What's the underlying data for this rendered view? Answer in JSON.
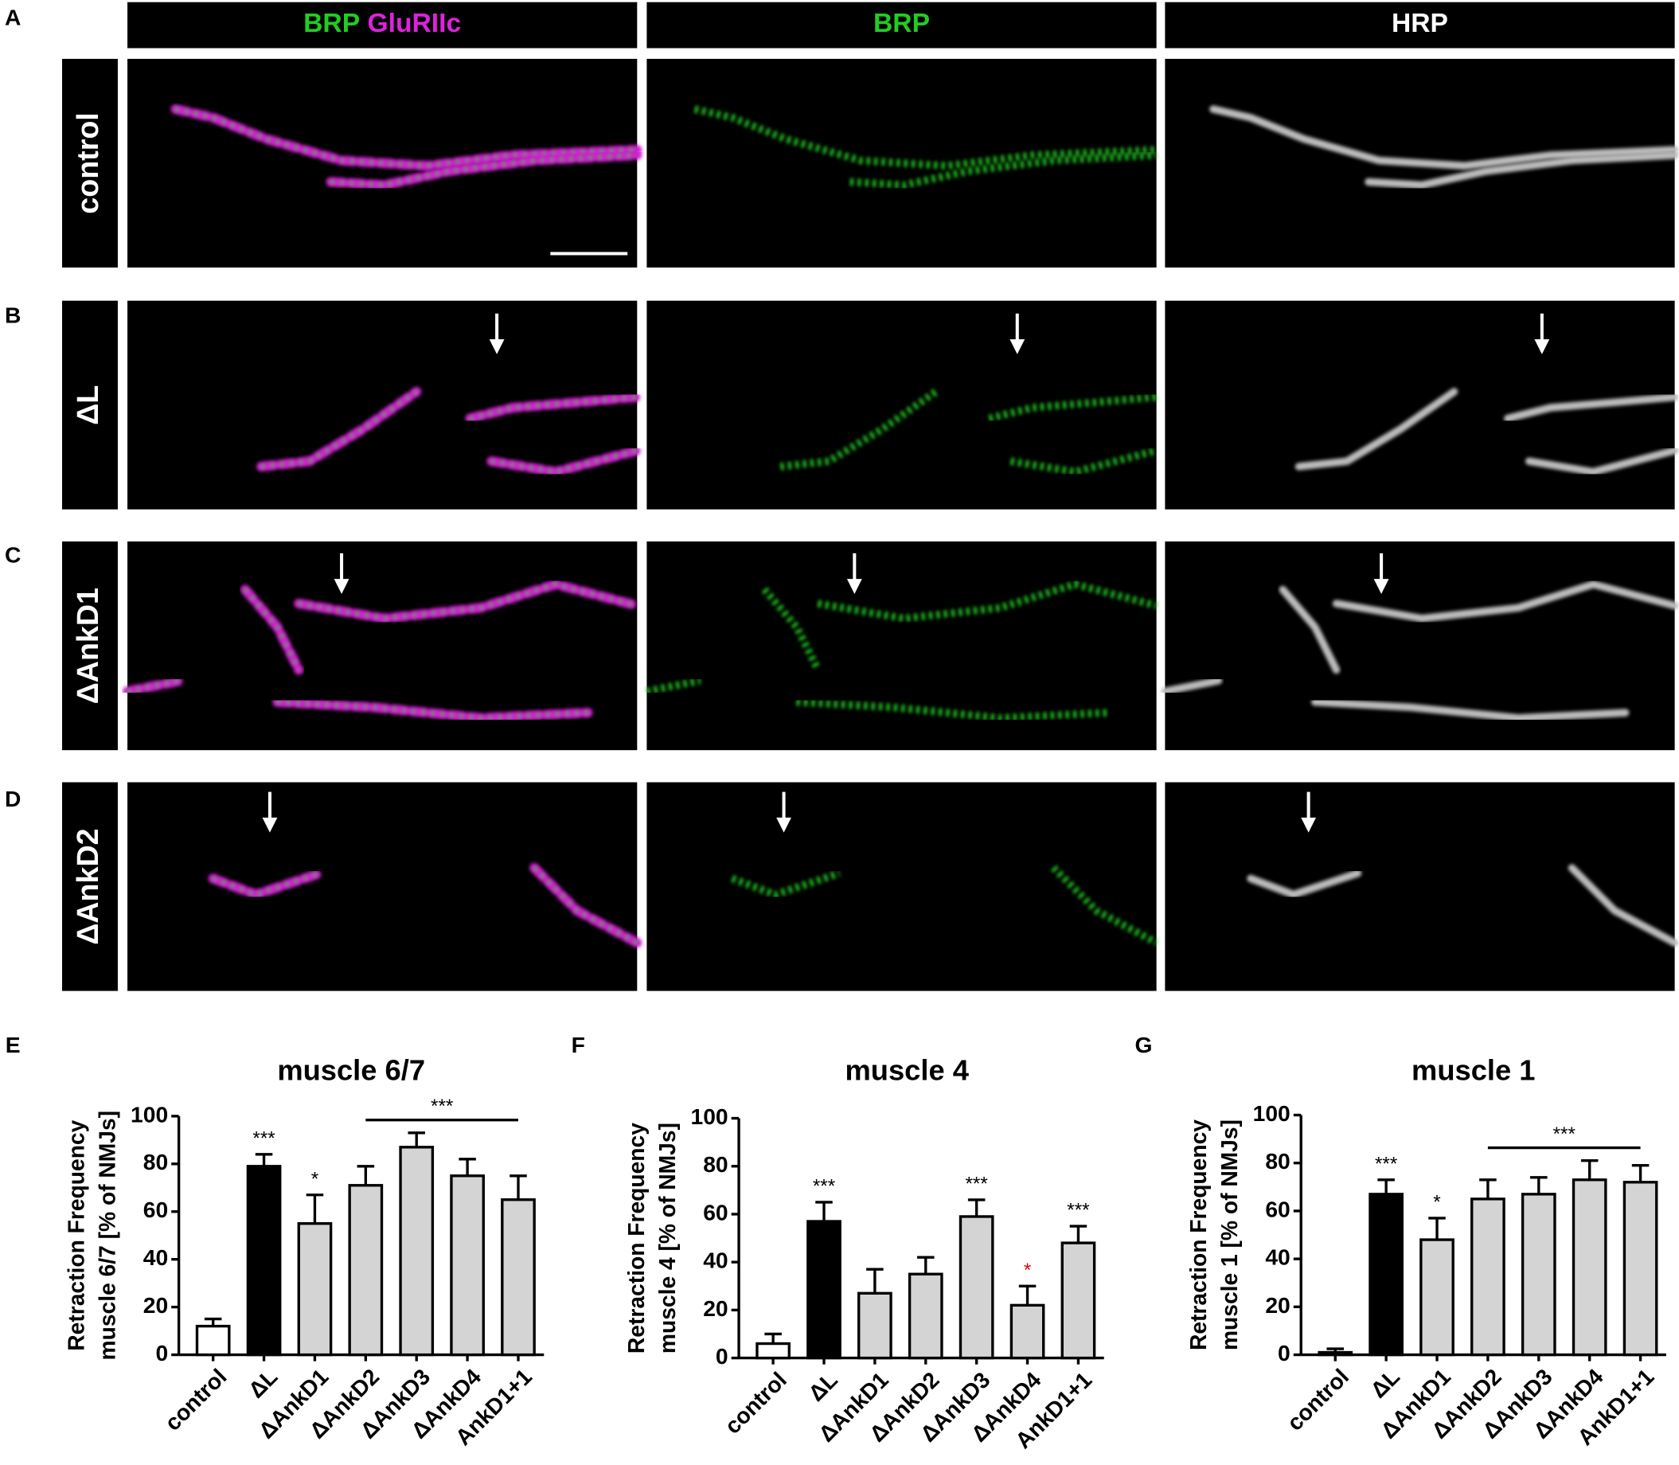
{
  "panel_labels": [
    "A",
    "B",
    "C",
    "D",
    "E",
    "F",
    "G"
  ],
  "column_headers": [
    [
      "BRP",
      "GluRIIc"
    ],
    [
      "BRP"
    ],
    [
      "HRP"
    ]
  ],
  "row_labels": [
    "control",
    "ΔL",
    "ΔAnkD1",
    "ΔAnkD2"
  ],
  "chart_data": [
    {
      "type": "bar",
      "title": "muscle 6/7",
      "ylabel": [
        "Retraction Frequency",
        "muscle 6/7 [% of NMJs]"
      ],
      "categories": [
        "control",
        "ΔL",
        "ΔAnkD1",
        "ΔAnkD2",
        "ΔAnkD3",
        "ΔAnkD4",
        "AnkD1+1"
      ],
      "values": [
        12,
        79,
        55,
        71,
        87,
        75,
        65
      ],
      "errors": [
        3,
        5,
        12,
        8,
        6,
        7,
        10
      ],
      "colors": [
        "#ffffff",
        "#000000",
        "#d4d4d4",
        "#d4d4d4",
        "#d4d4d4",
        "#d4d4d4",
        "#d4d4d4"
      ],
      "annotations": [
        null,
        {
          "text": "***",
          "color": "#000000"
        },
        {
          "text": "*",
          "color": "#000000"
        },
        null,
        null,
        null,
        null
      ],
      "bracket": {
        "span": [
          "ΔAnkD2",
          "AnkD1+1"
        ],
        "label": "***"
      },
      "ylim": [
        0,
        100
      ],
      "yticks": [
        0,
        20,
        40,
        60,
        80,
        100
      ]
    },
    {
      "type": "bar",
      "title": "muscle 4",
      "ylabel": [
        "Retraction Frequency",
        "muscle 4 [% of NMJs]"
      ],
      "categories": [
        "control",
        "ΔL",
        "ΔAnkD1",
        "ΔAnkD2",
        "ΔAnkD3",
        "ΔAnkD4",
        "AnkD1+1"
      ],
      "values": [
        6,
        57,
        27,
        35,
        59,
        22,
        48
      ],
      "errors": [
        4,
        8,
        10,
        7,
        7,
        8,
        7
      ],
      "colors": [
        "#ffffff",
        "#000000",
        "#d4d4d4",
        "#d4d4d4",
        "#d4d4d4",
        "#d4d4d4",
        "#d4d4d4"
      ],
      "annotations": [
        null,
        {
          "text": "***",
          "color": "#000000"
        },
        null,
        null,
        {
          "text": "***",
          "color": "#000000"
        },
        {
          "text": "*",
          "color": "#e00000"
        },
        {
          "text": "***",
          "color": "#000000"
        }
      ],
      "ylim": [
        0,
        100
      ],
      "yticks": [
        0,
        20,
        40,
        60,
        80,
        100
      ]
    },
    {
      "type": "bar",
      "title": "muscle 1",
      "ylabel": [
        "Retraction Frequency",
        "muscle 1 [% of NMJs]"
      ],
      "categories": [
        "control",
        "ΔL",
        "ΔAnkD1",
        "ΔAnkD2",
        "ΔAnkD3",
        "ΔAnkD4",
        "AnkD1+1"
      ],
      "values": [
        1,
        67,
        48,
        65,
        67,
        73,
        72
      ],
      "errors": [
        1.5,
        6,
        9,
        8,
        7,
        8,
        7
      ],
      "colors": [
        "#ffffff",
        "#000000",
        "#d4d4d4",
        "#d4d4d4",
        "#d4d4d4",
        "#d4d4d4",
        "#d4d4d4"
      ],
      "annotations": [
        null,
        {
          "text": "***",
          "color": "#000000"
        },
        {
          "text": "*",
          "color": "#000000"
        },
        null,
        null,
        null,
        null
      ],
      "bracket": {
        "span": [
          "ΔAnkD2",
          "AnkD1+1"
        ],
        "label": "***"
      },
      "ylim": [
        0,
        100
      ],
      "yticks": [
        0,
        20,
        40,
        60,
        80,
        100
      ]
    }
  ]
}
